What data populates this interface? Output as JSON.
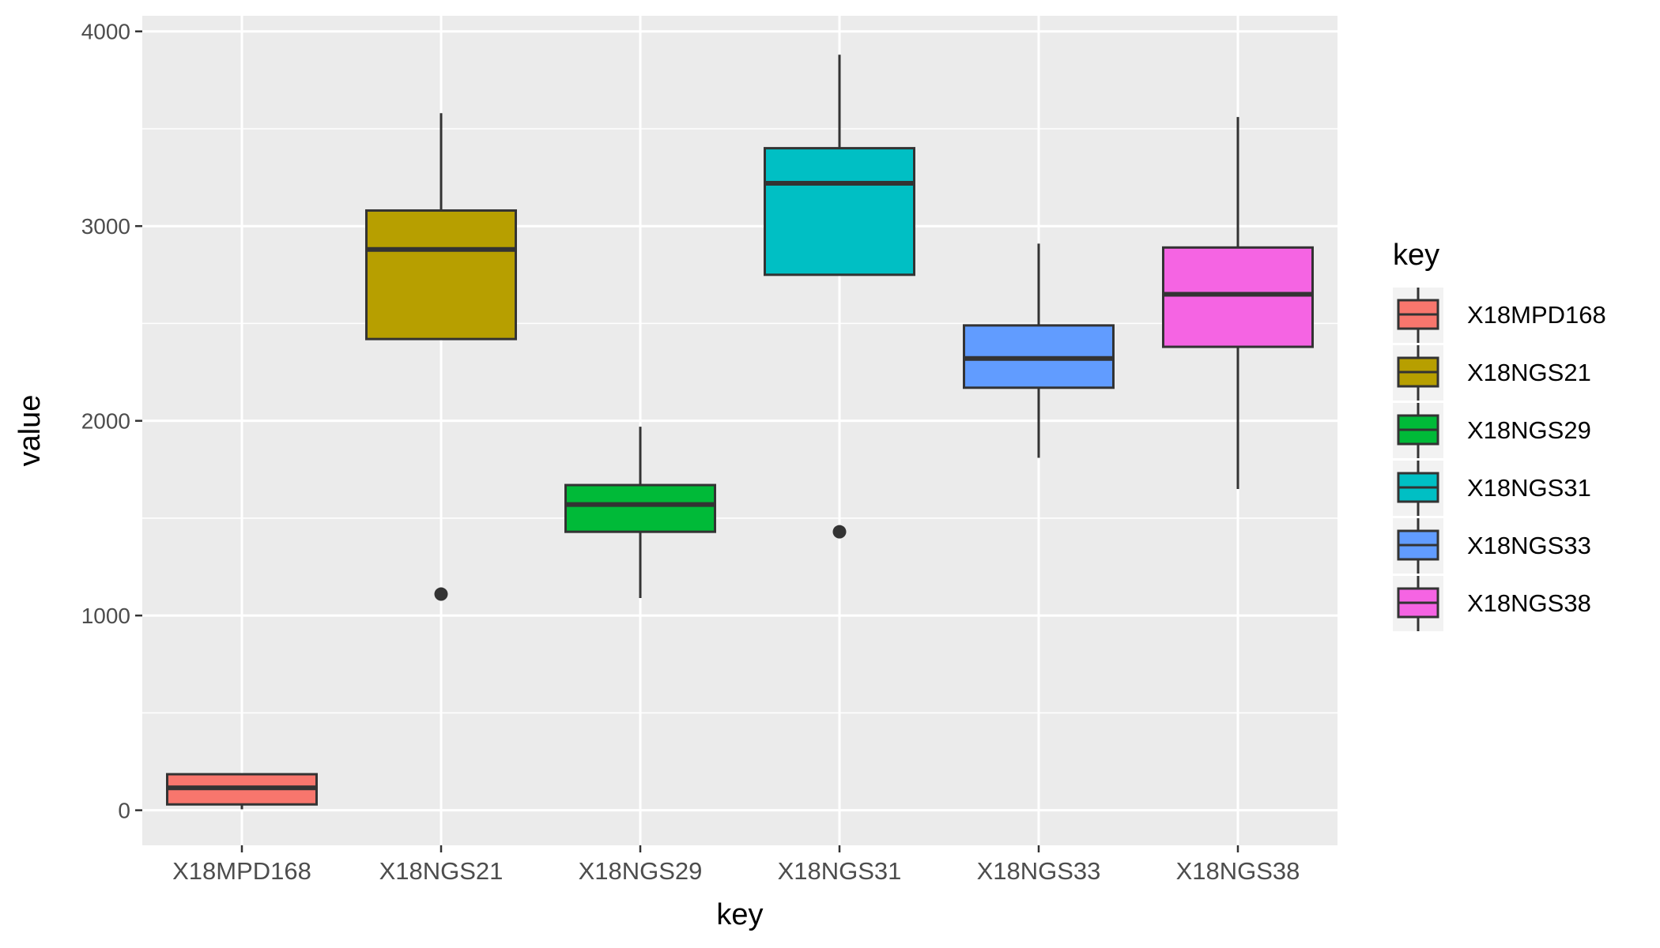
{
  "chart_data": {
    "type": "boxplot",
    "title": "",
    "xlabel": "key",
    "ylabel": "value",
    "ylim": [
      -180,
      4080
    ],
    "yticks": [
      0,
      1000,
      2000,
      3000,
      4000
    ],
    "yticklabels": [
      "0",
      "1000",
      "2000",
      "3000",
      "4000"
    ],
    "grid": true,
    "legend": {
      "title": "key",
      "position": "right"
    },
    "categories": [
      "X18MPD168",
      "X18NGS21",
      "X18NGS29",
      "X18NGS31",
      "X18NGS33",
      "X18NGS38"
    ],
    "series": [
      {
        "name": "X18MPD168",
        "color": "#F8766D",
        "whisker_low": 5,
        "q1": 30,
        "median": 115,
        "q3": 185,
        "whisker_high": 185,
        "outliers": []
      },
      {
        "name": "X18NGS21",
        "color": "#B79F00",
        "whisker_low": 2420,
        "q1": 2420,
        "median": 2880,
        "q3": 3080,
        "whisker_high": 3580,
        "outliers": [
          1110
        ]
      },
      {
        "name": "X18NGS29",
        "color": "#00BA38",
        "whisker_low": 1090,
        "q1": 1430,
        "median": 1570,
        "q3": 1670,
        "whisker_high": 1970,
        "outliers": []
      },
      {
        "name": "X18NGS31",
        "color": "#00BFC4",
        "whisker_low": 2750,
        "q1": 2750,
        "median": 3220,
        "q3": 3400,
        "whisker_high": 3880,
        "outliers": [
          1430
        ]
      },
      {
        "name": "X18NGS33",
        "color": "#619CFF",
        "whisker_low": 1810,
        "q1": 2170,
        "median": 2320,
        "q3": 2490,
        "whisker_high": 2910,
        "outliers": []
      },
      {
        "name": "X18NGS38",
        "color": "#F564E3",
        "whisker_low": 1650,
        "q1": 2380,
        "median": 2650,
        "q3": 2890,
        "whisker_high": 3560,
        "outliers": []
      }
    ]
  }
}
